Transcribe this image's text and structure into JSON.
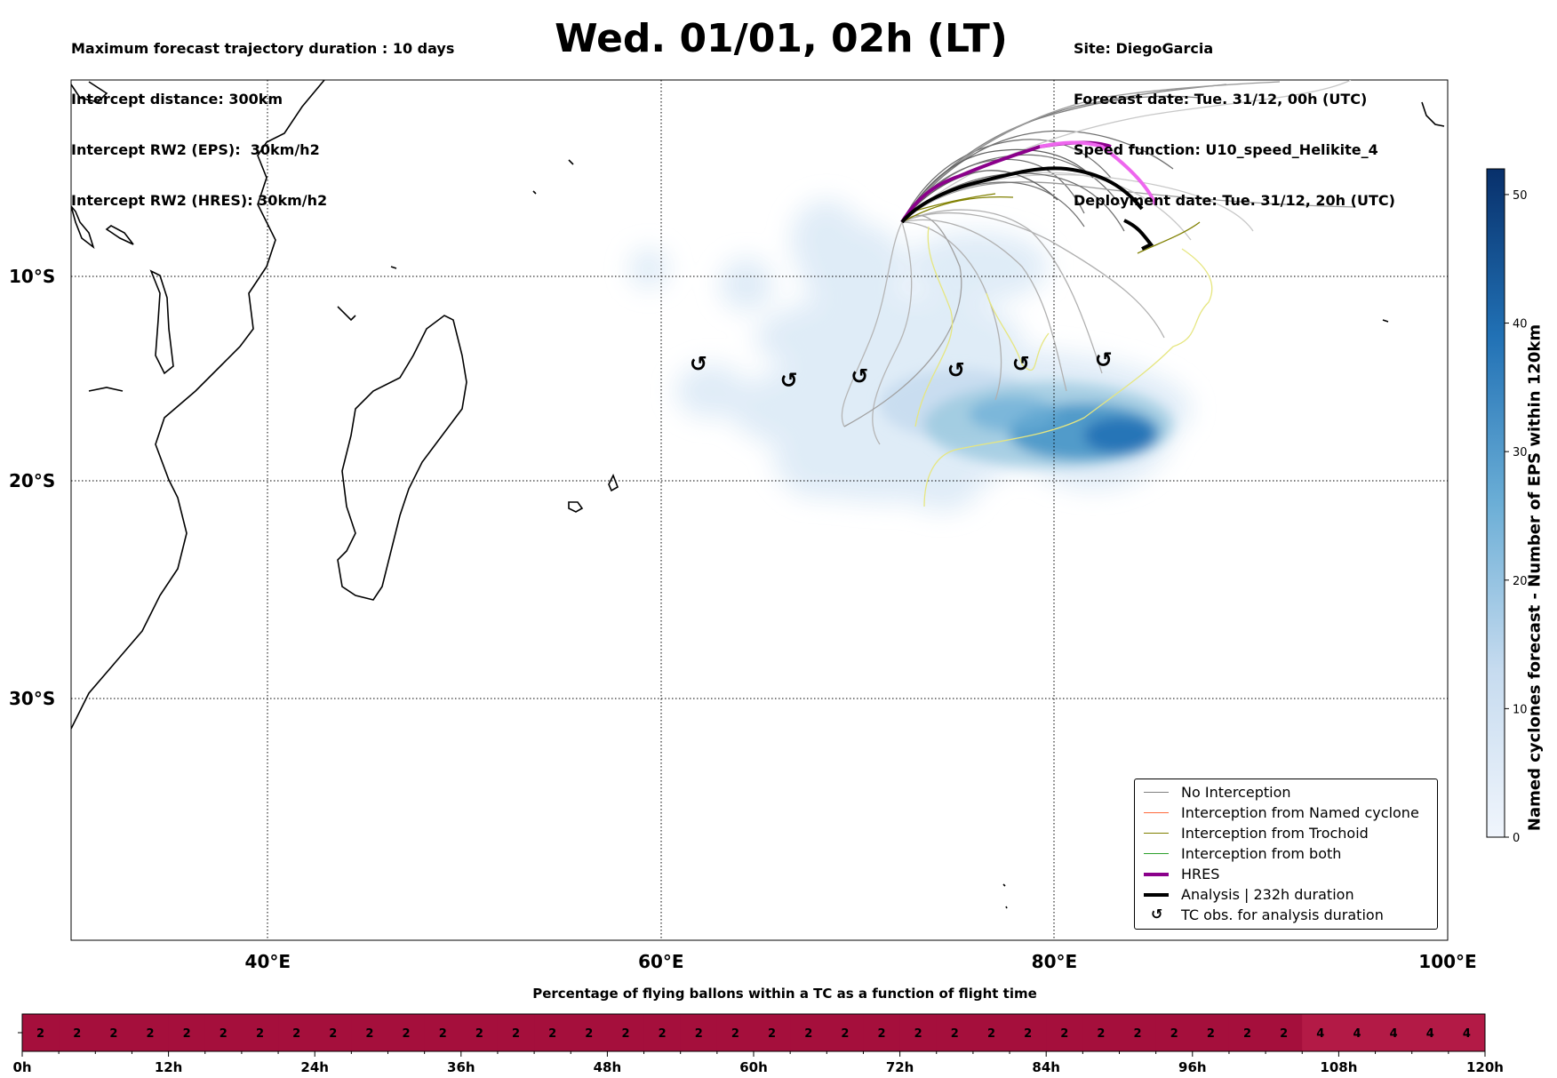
{
  "header": {
    "left": [
      "Maximum forecast trajectory duration : 10 days",
      "Intercept distance: 300km",
      "Intercept RW2 (EPS):  30km/h2",
      "Intercept RW2 (HRES): 30km/h2"
    ],
    "title": "Wed. 01/01, 02h (LT)",
    "right": [
      "Site: DiegoGarcia",
      "Forecast date: Tue. 31/12, 00h (UTC)",
      "Speed function: U10_speed_Helikite_4",
      "Deployment date: Tue. 31/12, 20h (UTC)"
    ]
  },
  "map": {
    "lon_range": [
      30,
      100
    ],
    "lat_range": [
      -43.5,
      1
    ],
    "lon_ticks": [
      {
        "value": 40,
        "label": "40°E"
      },
      {
        "value": 60,
        "label": "60°E"
      },
      {
        "value": 80,
        "label": "80°E"
      },
      {
        "value": 100,
        "label": "100°E"
      }
    ],
    "lat_ticks": [
      {
        "value": -10,
        "label": "10°S"
      },
      {
        "value": -20,
        "label": "20°S"
      },
      {
        "value": -30,
        "label": "30°S"
      }
    ],
    "tc_obs": [
      {
        "lon": 61.9,
        "lat": -14.3
      },
      {
        "lon": 66.5,
        "lat": -15.1
      },
      {
        "lon": 70.1,
        "lat": -14.9
      },
      {
        "lon": 75.0,
        "lat": -14.6
      },
      {
        "lon": 78.3,
        "lat": -14.3
      },
      {
        "lon": 82.5,
        "lat": -14.1
      }
    ]
  },
  "legend": {
    "items": [
      {
        "label": "No Interception",
        "color": "#808080"
      },
      {
        "label": "Interception from Named cyclone",
        "color": "#ff6a3d"
      },
      {
        "label": "Interception from Trochoid",
        "color": "#808000"
      },
      {
        "label": "Interception from both",
        "color": "#2ca02c"
      },
      {
        "label": "HRES",
        "color": "#8b008b"
      },
      {
        "label": "Analysis | 232h duration",
        "color": "#000000"
      },
      {
        "label": "TC obs. for analysis duration",
        "color": "#000000"
      }
    ]
  },
  "colorbar": {
    "label": "Named cyclones forecast - Number of EPS within 120km",
    "min": 0,
    "max": 52,
    "ticks": [
      0,
      10,
      20,
      30,
      40,
      50
    ],
    "color_low": "#f0f5fc",
    "color_high": "#08306b"
  },
  "chart_data": [
    {
      "type": "heatmap",
      "title": "",
      "description_series": "Named cyclones forecast density (EPS members within 120km)",
      "peaks": [
        {
          "lon": 84,
          "lat": -17.8,
          "value": 52
        },
        {
          "lon": 80,
          "lat": -16.8,
          "value": 40
        },
        {
          "lon": 76,
          "lat": -16.5,
          "value": 20
        },
        {
          "lon": 72,
          "lat": -15.5,
          "value": 8
        }
      ]
    },
    {
      "type": "line",
      "title": "",
      "series": [
        {
          "name": "HRES",
          "color": "#8b008b",
          "points": [
            [
              72.3,
              -7.5
            ],
            [
              73.5,
              -6.0
            ],
            [
              75.5,
              -4.9
            ],
            [
              77.5,
              -4.0
            ],
            [
              79.0,
              -3.4
            ],
            [
              80.5,
              -3.3
            ],
            [
              81.5,
              -4.0
            ],
            [
              82.5,
              -5.5
            ],
            [
              83.0,
              -7.0
            ]
          ]
        },
        {
          "name": "Analysis | 232h duration",
          "color": "#000000",
          "points": [
            [
              72.3,
              -7.5
            ],
            [
              73.5,
              -6.5
            ],
            [
              75.5,
              -5.7
            ],
            [
              77.5,
              -5.0
            ],
            [
              79.0,
              -4.6
            ],
            [
              80.5,
              -4.8
            ],
            [
              82.0,
              -5.3
            ],
            [
              83.2,
              -6.0
            ],
            [
              84.2,
              -7.2
            ],
            [
              85.0,
              -8.5
            ]
          ]
        }
      ]
    },
    {
      "type": "bar",
      "title": "Percentage of flying ballons within a TC as a function of flight time",
      "x_ticks": [
        "0h",
        "12h",
        "24h",
        "36h",
        "48h",
        "60h",
        "72h",
        "84h",
        "96h",
        "108h",
        "120h"
      ],
      "categories_hours_step": 3,
      "values": [
        2,
        2,
        2,
        2,
        2,
        2,
        2,
        2,
        2,
        2,
        2,
        2,
        2,
        2,
        2,
        2,
        2,
        2,
        2,
        2,
        2,
        2,
        2,
        2,
        2,
        2,
        2,
        2,
        2,
        2,
        2,
        2,
        2,
        2,
        2,
        4,
        4,
        4,
        4,
        4
      ],
      "color_2": "#a50f3c",
      "color_4": "#b31a46"
    }
  ]
}
